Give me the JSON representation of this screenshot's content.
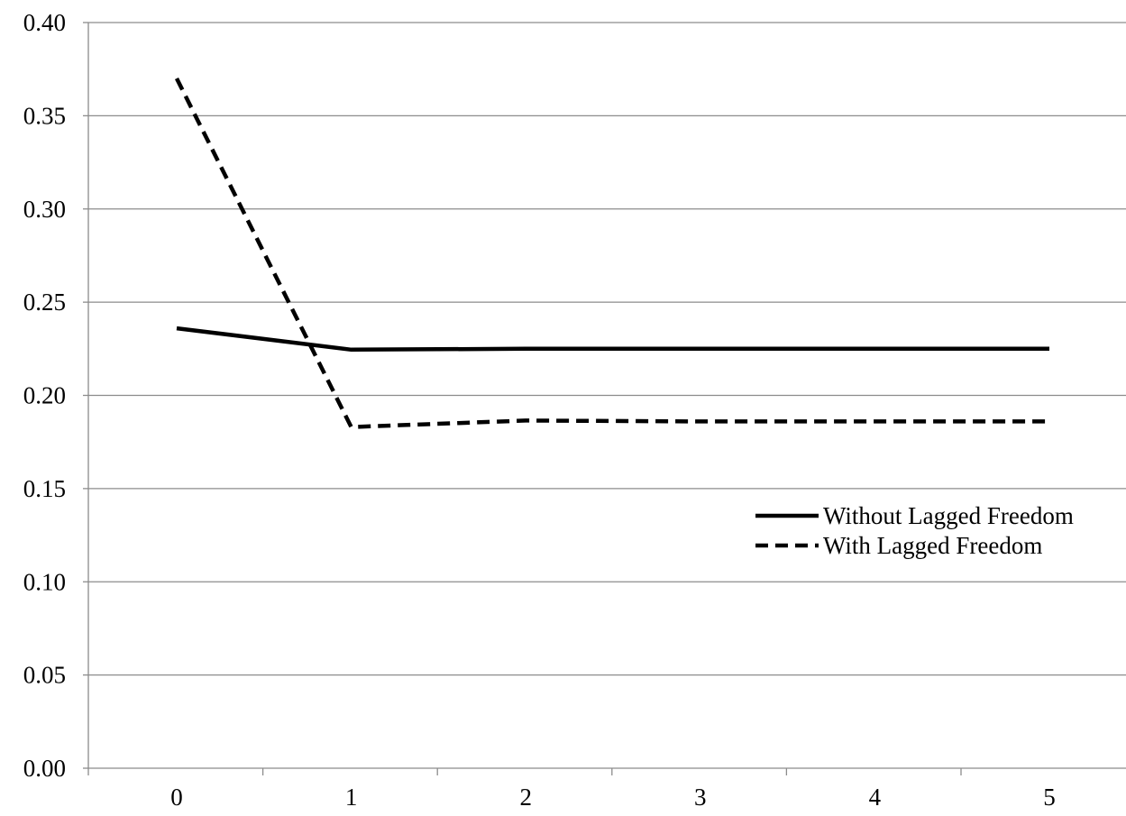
{
  "chart_data": {
    "type": "line",
    "title": "",
    "xlabel": "",
    "ylabel": "",
    "x": [
      0,
      1,
      2,
      3,
      4,
      5
    ],
    "ylim": [
      0,
      0.4
    ],
    "y_ticks": [
      "0.00",
      "0.05",
      "0.10",
      "0.15",
      "0.20",
      "0.25",
      "0.30",
      "0.35",
      "0.40"
    ],
    "x_ticks": [
      "0",
      "1",
      "2",
      "3",
      "4",
      "5"
    ],
    "grid": "horizontal",
    "legend_position": "right",
    "series": [
      {
        "name": "Without Lagged Freedom",
        "style": "solid",
        "color": "#000000",
        "values": [
          0.236,
          0.2245,
          0.225,
          0.225,
          0.225,
          0.225
        ]
      },
      {
        "name": "With Lagged Freedom",
        "style": "dashed",
        "color": "#000000",
        "values": [
          0.37,
          0.183,
          0.1865,
          0.186,
          0.186,
          0.186
        ]
      }
    ]
  }
}
